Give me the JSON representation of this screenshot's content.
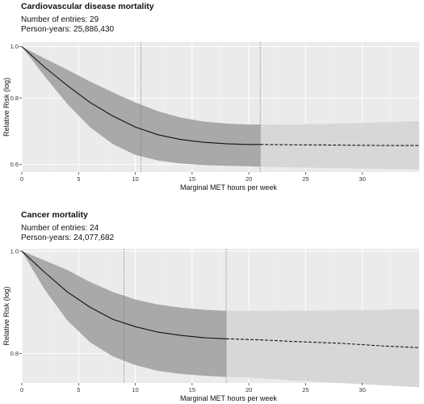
{
  "panels": [
    {
      "title": "Cardiovascular disease mortality",
      "entries": "Number of entries: 29",
      "person_years": "Person-years: 25,886,430"
    },
    {
      "title": "Cancer mortality",
      "entries": "Number of entries: 24",
      "person_years": "Person-years: 24,077,682"
    }
  ],
  "chart_data": [
    {
      "type": "line",
      "title": "Cardiovascular disease mortality",
      "xlabel": "Marginal MET hours per week",
      "ylabel": "Relative Risk (log)",
      "y_scale": "log",
      "xlim": [
        0,
        35
      ],
      "ylim": [
        0.58,
        1.02
      ],
      "x_ticks": [
        0,
        5,
        10,
        15,
        20,
        25,
        30
      ],
      "y_ticks": [
        0.6,
        0.8,
        1.0
      ],
      "y_tick_labels": [
        "0.6",
        "0.8",
        "1.0"
      ],
      "reference_lines_x": [
        10.5,
        21
      ],
      "observed_range_end": 21,
      "series": [
        {
          "x": [
            0,
            2,
            4,
            6,
            8,
            10,
            12,
            14,
            16,
            18,
            20,
            21,
            24,
            28,
            32,
            35
          ],
          "y": [
            1.0,
            0.915,
            0.845,
            0.785,
            0.74,
            0.705,
            0.682,
            0.668,
            0.66,
            0.656,
            0.654,
            0.654,
            0.653,
            0.652,
            0.651,
            0.651
          ],
          "lower": [
            1.0,
            0.88,
            0.78,
            0.705,
            0.655,
            0.625,
            0.61,
            0.602,
            0.598,
            0.596,
            0.595,
            0.594,
            0.592,
            0.59,
            0.588,
            0.587
          ],
          "upper": [
            1.0,
            0.95,
            0.905,
            0.86,
            0.82,
            0.785,
            0.755,
            0.735,
            0.722,
            0.716,
            0.713,
            0.713,
            0.713,
            0.716,
            0.72,
            0.724
          ]
        }
      ]
    },
    {
      "type": "line",
      "title": "Cancer mortality",
      "xlabel": "Marginal MET hours per week",
      "ylabel": "Relative Risk (log)",
      "y_scale": "log",
      "xlim": [
        0,
        35
      ],
      "ylim": [
        0.75,
        1.005
      ],
      "x_ticks": [
        0,
        5,
        10,
        15,
        20,
        25,
        30
      ],
      "y_ticks": [
        0.8,
        1.0
      ],
      "y_tick_labels": [
        "0.8",
        "1.0"
      ],
      "reference_lines_x": [
        9,
        18
      ],
      "observed_range_end": 18,
      "series": [
        {
          "x": [
            0,
            2,
            4,
            6,
            8,
            10,
            12,
            14,
            16,
            18,
            21,
            24,
            28,
            32,
            35
          ],
          "y": [
            1.0,
            0.955,
            0.915,
            0.885,
            0.862,
            0.848,
            0.838,
            0.832,
            0.828,
            0.826,
            0.824,
            0.821,
            0.818,
            0.813,
            0.81
          ],
          "lower": [
            1.0,
            0.92,
            0.86,
            0.82,
            0.795,
            0.78,
            0.77,
            0.765,
            0.762,
            0.76,
            0.758,
            0.754,
            0.75,
            0.746,
            0.743
          ],
          "upper": [
            1.0,
            0.98,
            0.96,
            0.935,
            0.915,
            0.9,
            0.89,
            0.884,
            0.88,
            0.878,
            0.878,
            0.878,
            0.879,
            0.88,
            0.881
          ]
        }
      ]
    }
  ]
}
